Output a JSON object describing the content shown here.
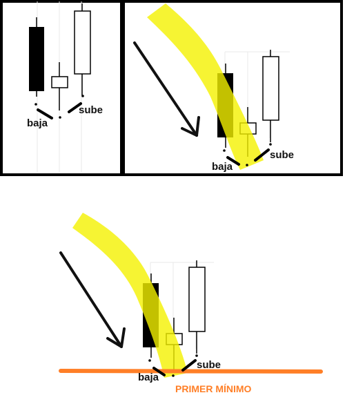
{
  "panel_left": {
    "down_label": "baja",
    "up_label": "sube"
  },
  "panel_right": {
    "down_label": "baja",
    "up_label": "sube"
  },
  "bottom": {
    "down_label": "baja",
    "up_label": "sube",
    "level_label": "PRIMER MÍNIMO"
  },
  "colors": {
    "bearish_candle": "#000000",
    "bullish_candle": "#ffffff",
    "highlight": "#f4f100",
    "level_line": "#ff7f27",
    "level_text": "#ff7f27",
    "arrow": "#111111",
    "frame": "#000000"
  }
}
